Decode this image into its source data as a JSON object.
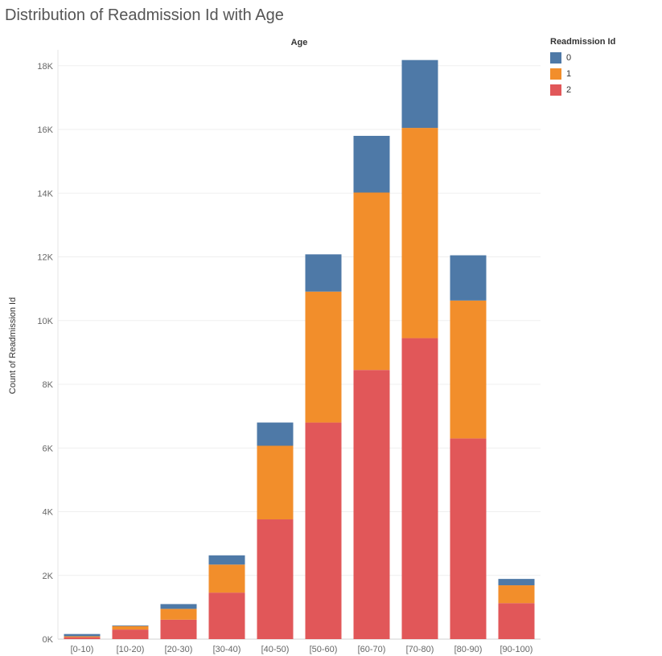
{
  "chart_data": {
    "type": "bar",
    "stacked": true,
    "title": "Distribution of Readmission Id with Age",
    "column_header": "Age",
    "ylabel": "Count of Readmission Id",
    "xlabel": "",
    "ylim": [
      0,
      18500
    ],
    "yticks": [
      0,
      2000,
      4000,
      6000,
      8000,
      10000,
      12000,
      14000,
      16000,
      18000
    ],
    "ytick_labels": [
      "0K",
      "2K",
      "4K",
      "6K",
      "8K",
      "10K",
      "12K",
      "14K",
      "16K",
      "18K"
    ],
    "grid": true,
    "legend_position": "top-right",
    "legend_title": "Readmission Id",
    "categories": [
      "[0-10)",
      "[10-20)",
      "[20-30)",
      "[30-40)",
      "[40-50)",
      "[50-60)",
      "[60-70)",
      "[70-80)",
      "[80-90)",
      "[90-100)"
    ],
    "series": [
      {
        "name": "2",
        "color": "#e15759",
        "values": [
          60,
          300,
          610,
          1460,
          3760,
          6800,
          8450,
          9450,
          6300,
          1130
        ]
      },
      {
        "name": "1",
        "color": "#f28e2b",
        "values": [
          30,
          110,
          340,
          880,
          2310,
          4110,
          5570,
          6600,
          4330,
          560
        ]
      },
      {
        "name": "0",
        "color": "#4e79a7",
        "values": [
          70,
          20,
          150,
          290,
          730,
          1170,
          1780,
          2130,
          1420,
          200
        ]
      }
    ],
    "legend_order": [
      "0",
      "1",
      "2"
    ]
  }
}
